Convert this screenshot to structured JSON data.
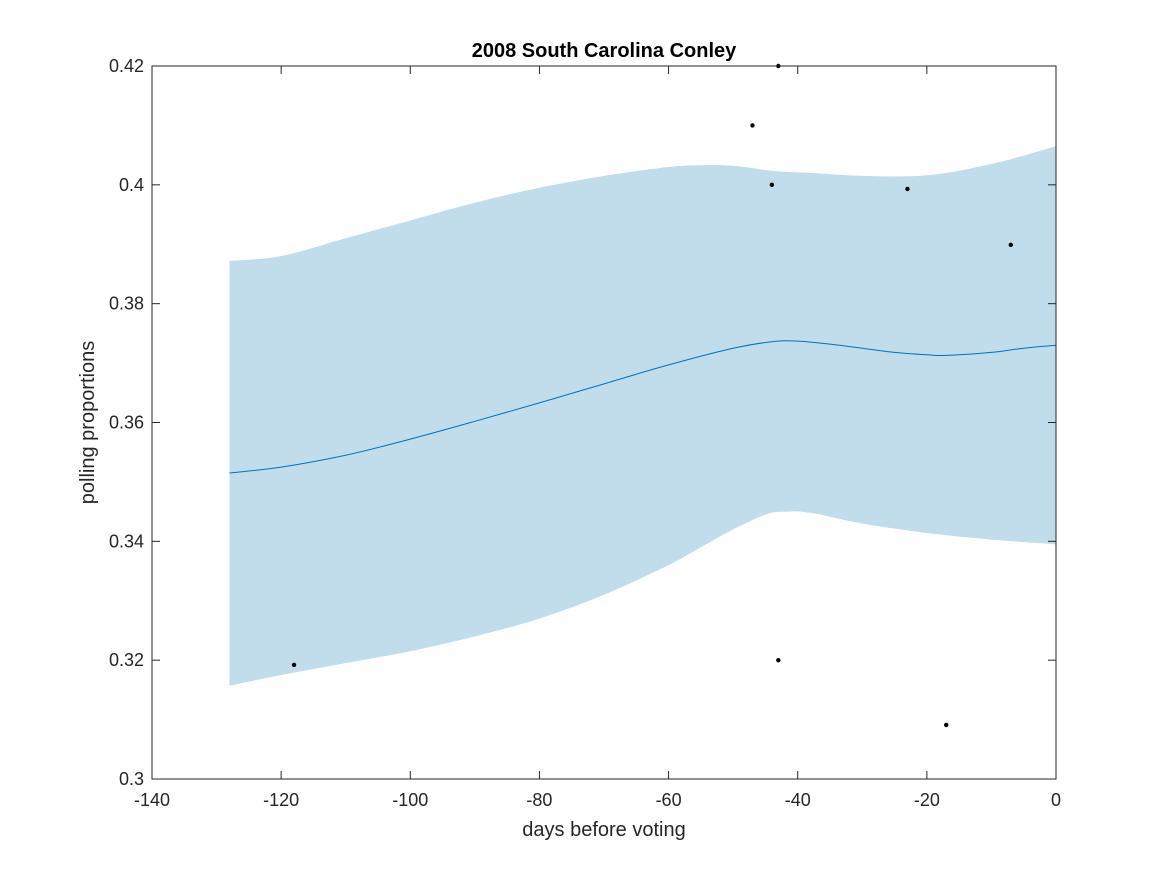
{
  "chart_data": {
    "type": "line",
    "title": "2008 South Carolina Conley",
    "xlabel": "days before voting",
    "ylabel": "polling proportions",
    "xlim": [
      -140,
      0
    ],
    "ylim": [
      0.3,
      0.42
    ],
    "xticks": [
      -140,
      -120,
      -100,
      -80,
      -60,
      -40,
      -20,
      0
    ],
    "yticks": [
      0.3,
      0.32,
      0.34,
      0.36,
      0.38,
      0.4,
      0.42
    ],
    "xtick_labels": [
      "-140",
      "-120",
      "-100",
      "-80",
      "-60",
      "-40",
      "-20",
      "0"
    ],
    "ytick_labels": [
      "0.3",
      "0.32",
      "0.34",
      "0.36",
      "0.38",
      "0.4",
      "0.42"
    ],
    "grid": false,
    "colors": {
      "band": "#c1dcea",
      "line": "#0072bd",
      "points": "#000000",
      "axes": "#262626"
    },
    "band": {
      "x": [
        -128,
        -120,
        -110,
        -100,
        -90,
        -80,
        -70,
        -60,
        -55,
        -50,
        -45,
        -42,
        -38,
        -30,
        -20,
        -10,
        0
      ],
      "upper": [
        0.3872,
        0.388,
        0.391,
        0.394,
        0.397,
        0.3995,
        0.4015,
        0.403,
        0.4033,
        0.4032,
        0.4025,
        0.4022,
        0.402,
        0.4015,
        0.4016,
        0.4035,
        0.4065
      ],
      "lower": [
        0.3157,
        0.3175,
        0.3195,
        0.3215,
        0.324,
        0.327,
        0.331,
        0.336,
        0.339,
        0.342,
        0.3445,
        0.345,
        0.3448,
        0.343,
        0.3414,
        0.3403,
        0.3395
      ]
    },
    "series": [
      {
        "x": [
          -128,
          -120,
          -110,
          -100,
          -90,
          -80,
          -70,
          -60,
          -50,
          -44,
          -40,
          -35,
          -30,
          -25,
          -20,
          -17,
          -10,
          -5,
          0
        ],
        "values": [
          0.3515,
          0.3525,
          0.3545,
          0.3572,
          0.3602,
          0.3633,
          0.3665,
          0.3697,
          0.3725,
          0.3736,
          0.3737,
          0.3732,
          0.3725,
          0.3718,
          0.3714,
          0.3713,
          0.3718,
          0.3725,
          0.373
        ]
      }
    ],
    "points": {
      "x": [
        -118,
        -47,
        -44,
        -43,
        -43,
        -23,
        -17,
        -7
      ],
      "y": [
        0.3192,
        0.41,
        0.4,
        0.42,
        0.32,
        0.3993,
        0.3091,
        0.3899
      ]
    }
  }
}
